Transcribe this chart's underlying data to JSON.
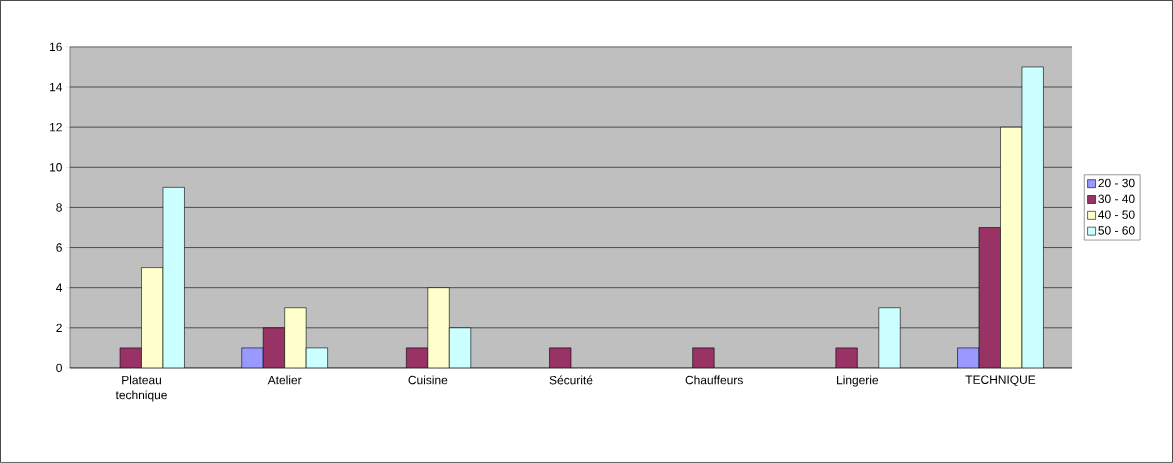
{
  "chart_data": {
    "type": "bar",
    "categories": [
      "Plateau technique",
      "Atelier",
      "Cuisine",
      "Sécurité",
      "Chauffeurs",
      "Lingerie",
      "TECHNIQUE"
    ],
    "series": [
      {
        "name": "20 - 30",
        "color": "#9999ff",
        "values": [
          null,
          1,
          null,
          null,
          null,
          null,
          1
        ]
      },
      {
        "name": "30 - 40",
        "color": "#993366",
        "values": [
          1,
          2,
          1,
          1,
          1,
          1,
          7
        ]
      },
      {
        "name": "40 - 50",
        "color": "#ffffcc",
        "values": [
          5,
          3,
          4,
          null,
          null,
          null,
          12
        ]
      },
      {
        "name": "50 - 60",
        "color": "#ccffff",
        "values": [
          9,
          1,
          2,
          null,
          null,
          3,
          15
        ]
      }
    ],
    "ylim": [
      0,
      16
    ],
    "yticks": [
      0,
      2,
      4,
      6,
      8,
      10,
      12,
      14,
      16
    ],
    "grid": "y",
    "legend": "right"
  }
}
